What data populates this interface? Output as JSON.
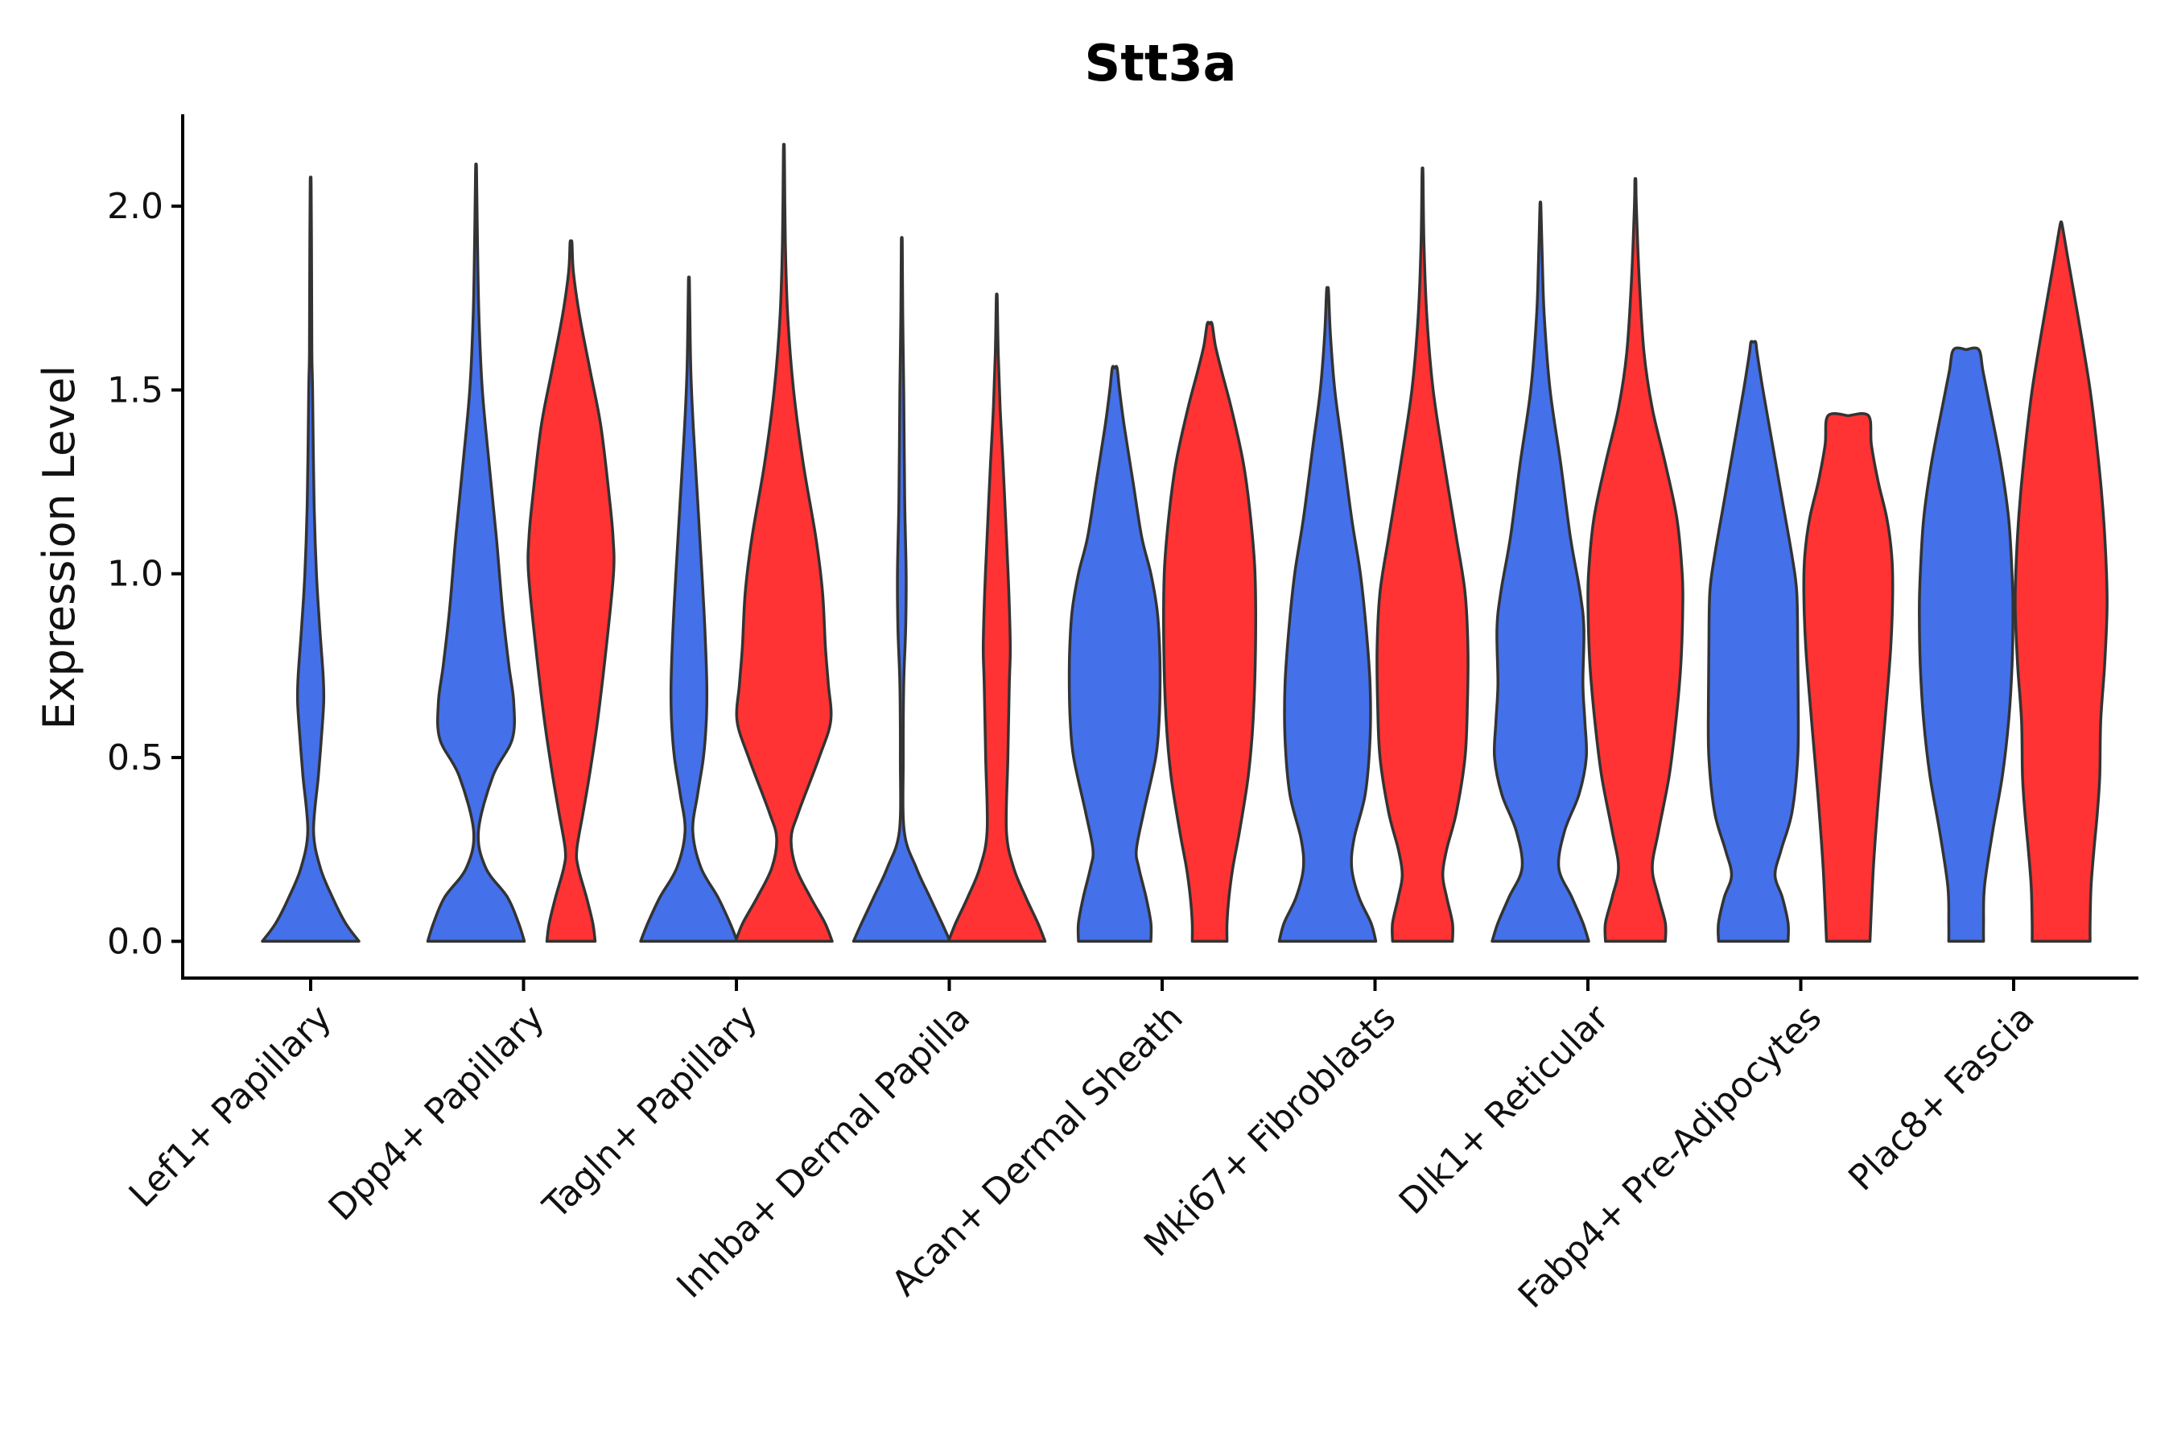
{
  "chart_data": {
    "type": "violin",
    "title": "Stt3a",
    "xlabel": "",
    "ylabel": "Expression Level",
    "ylim": [
      -0.1,
      2.25
    ],
    "yticks": [
      0.0,
      0.5,
      1.0,
      1.5,
      2.0
    ],
    "ytick_labels": [
      "0.0",
      "0.5",
      "1.0",
      "1.5",
      "2.0"
    ],
    "categories": [
      "Lef1+ Papillary",
      "Dpp4+ Papillary",
      "Tagln+ Papillary",
      "Inhba+ Dermal Papilla",
      "Acan+ Dermal Sheath",
      "Mki67+ Fibroblasts",
      "Dlk1+ Reticular",
      "Fabp4+ Pre-Adipocytes",
      "Plac8+ Fascia"
    ],
    "series": [
      {
        "name": "group1",
        "color": "#4470ea"
      },
      {
        "name": "group2",
        "color": "#ff3333"
      }
    ],
    "violins": [
      {
        "category": "Lef1+ Papillary",
        "series": "group1",
        "max": 2.06,
        "profile": [
          [
            0,
            1.0
          ],
          [
            0.05,
            0.72
          ],
          [
            0.12,
            0.45
          ],
          [
            0.2,
            0.2
          ],
          [
            0.3,
            0.06
          ],
          [
            0.45,
            0.16
          ],
          [
            0.55,
            0.22
          ],
          [
            0.65,
            0.27
          ],
          [
            0.72,
            0.26
          ],
          [
            0.85,
            0.19
          ],
          [
            1.0,
            0.12
          ],
          [
            1.2,
            0.07
          ],
          [
            1.5,
            0.04
          ],
          [
            1.6,
            0.025
          ],
          [
            1.8,
            0.02
          ],
          [
            2.06,
            0.01
          ]
        ]
      },
      {
        "category": "Dpp4+ Papillary",
        "series": "group1",
        "max": 2.1,
        "profile": [
          [
            0,
            1.0
          ],
          [
            0.05,
            0.88
          ],
          [
            0.12,
            0.65
          ],
          [
            0.2,
            0.2
          ],
          [
            0.3,
            0.05
          ],
          [
            0.45,
            0.35
          ],
          [
            0.55,
            0.75
          ],
          [
            0.65,
            0.78
          ],
          [
            0.75,
            0.68
          ],
          [
            0.9,
            0.55
          ],
          [
            1.1,
            0.42
          ],
          [
            1.3,
            0.27
          ],
          [
            1.5,
            0.13
          ],
          [
            1.7,
            0.06
          ],
          [
            1.9,
            0.03
          ],
          [
            2.1,
            0.01
          ]
        ]
      },
      {
        "category": "Dpp4+ Papillary",
        "series": "group2",
        "max": 1.9,
        "profile": [
          [
            0,
            0.5
          ],
          [
            0.05,
            0.45
          ],
          [
            0.12,
            0.32
          ],
          [
            0.2,
            0.15
          ],
          [
            0.25,
            0.12
          ],
          [
            0.35,
            0.25
          ],
          [
            0.45,
            0.38
          ],
          [
            0.6,
            0.55
          ],
          [
            0.8,
            0.73
          ],
          [
            1.0,
            0.88
          ],
          [
            1.1,
            0.87
          ],
          [
            1.2,
            0.8
          ],
          [
            1.4,
            0.62
          ],
          [
            1.55,
            0.4
          ],
          [
            1.7,
            0.18
          ],
          [
            1.82,
            0.05
          ],
          [
            1.9,
            0.02
          ]
        ]
      },
      {
        "category": "Tagln+ Papillary",
        "series": "group1",
        "max": 1.8,
        "profile": [
          [
            0,
            1.0
          ],
          [
            0.05,
            0.85
          ],
          [
            0.12,
            0.6
          ],
          [
            0.2,
            0.25
          ],
          [
            0.3,
            0.08
          ],
          [
            0.4,
            0.18
          ],
          [
            0.5,
            0.3
          ],
          [
            0.6,
            0.36
          ],
          [
            0.7,
            0.37
          ],
          [
            0.85,
            0.33
          ],
          [
            1.0,
            0.27
          ],
          [
            1.2,
            0.18
          ],
          [
            1.4,
            0.09
          ],
          [
            1.55,
            0.04
          ],
          [
            1.7,
            0.02
          ],
          [
            1.8,
            0.01
          ]
        ]
      },
      {
        "category": "Tagln+ Papillary",
        "series": "group2",
        "max": 2.15,
        "profile": [
          [
            0,
            1.0
          ],
          [
            0.05,
            0.85
          ],
          [
            0.12,
            0.55
          ],
          [
            0.2,
            0.25
          ],
          [
            0.28,
            0.15
          ],
          [
            0.35,
            0.3
          ],
          [
            0.5,
            0.73
          ],
          [
            0.6,
            0.97
          ],
          [
            0.7,
            0.92
          ],
          [
            0.8,
            0.86
          ],
          [
            0.95,
            0.8
          ],
          [
            1.1,
            0.66
          ],
          [
            1.3,
            0.4
          ],
          [
            1.5,
            0.2
          ],
          [
            1.7,
            0.08
          ],
          [
            1.9,
            0.03
          ],
          [
            2.15,
            0.01
          ]
        ]
      },
      {
        "category": "Inhba+ Dermal Papilla",
        "series": "group1",
        "max": 1.9,
        "profile": [
          [
            0,
            1.0
          ],
          [
            0.05,
            0.83
          ],
          [
            0.12,
            0.58
          ],
          [
            0.2,
            0.3
          ],
          [
            0.3,
            0.05
          ],
          [
            0.5,
            0.03
          ],
          [
            0.7,
            0.04
          ],
          [
            0.85,
            0.08
          ],
          [
            1.0,
            0.09
          ],
          [
            1.2,
            0.06
          ],
          [
            1.5,
            0.04
          ],
          [
            1.7,
            0.02
          ],
          [
            1.9,
            0.01
          ]
        ]
      },
      {
        "category": "Inhba+ Dermal Papilla",
        "series": "group2",
        "max": 1.75,
        "profile": [
          [
            0,
            1.0
          ],
          [
            0.05,
            0.85
          ],
          [
            0.12,
            0.6
          ],
          [
            0.2,
            0.35
          ],
          [
            0.3,
            0.2
          ],
          [
            0.5,
            0.23
          ],
          [
            0.7,
            0.26
          ],
          [
            0.8,
            0.28
          ],
          [
            0.95,
            0.25
          ],
          [
            1.1,
            0.2
          ],
          [
            1.3,
            0.13
          ],
          [
            1.45,
            0.07
          ],
          [
            1.6,
            0.03
          ],
          [
            1.75,
            0.01
          ]
        ]
      },
      {
        "category": "Acan+ Dermal Sheath",
        "series": "group1",
        "max": 1.56,
        "profile": [
          [
            0,
            0.75
          ],
          [
            0.05,
            0.75
          ],
          [
            0.12,
            0.65
          ],
          [
            0.2,
            0.5
          ],
          [
            0.25,
            0.45
          ],
          [
            0.35,
            0.6
          ],
          [
            0.5,
            0.85
          ],
          [
            0.6,
            0.92
          ],
          [
            0.7,
            0.94
          ],
          [
            0.8,
            0.93
          ],
          [
            0.9,
            0.88
          ],
          [
            1.0,
            0.75
          ],
          [
            1.1,
            0.56
          ],
          [
            1.25,
            0.38
          ],
          [
            1.4,
            0.2
          ],
          [
            1.5,
            0.1
          ],
          [
            1.56,
            0.05
          ]
        ]
      },
      {
        "category": "Acan+ Dermal Sheath",
        "series": "group2",
        "max": 1.68,
        "profile": [
          [
            0,
            0.36
          ],
          [
            0.05,
            0.36
          ],
          [
            0.12,
            0.4
          ],
          [
            0.2,
            0.48
          ],
          [
            0.3,
            0.62
          ],
          [
            0.45,
            0.8
          ],
          [
            0.6,
            0.9
          ],
          [
            0.8,
            0.95
          ],
          [
            1.0,
            0.94
          ],
          [
            1.15,
            0.85
          ],
          [
            1.3,
            0.7
          ],
          [
            1.45,
            0.45
          ],
          [
            1.55,
            0.25
          ],
          [
            1.62,
            0.12
          ],
          [
            1.68,
            0.05
          ]
        ]
      },
      {
        "category": "Mki67+ Fibroblasts",
        "series": "group1",
        "max": 1.77,
        "profile": [
          [
            0,
            1.0
          ],
          [
            0.05,
            0.9
          ],
          [
            0.12,
            0.65
          ],
          [
            0.2,
            0.5
          ],
          [
            0.28,
            0.55
          ],
          [
            0.4,
            0.78
          ],
          [
            0.55,
            0.88
          ],
          [
            0.7,
            0.88
          ],
          [
            0.85,
            0.8
          ],
          [
            1.0,
            0.68
          ],
          [
            1.15,
            0.5
          ],
          [
            1.35,
            0.3
          ],
          [
            1.5,
            0.15
          ],
          [
            1.65,
            0.06
          ],
          [
            1.77,
            0.02
          ]
        ]
      },
      {
        "category": "Mki67+ Fibroblasts",
        "series": "group2",
        "max": 2.09,
        "profile": [
          [
            0,
            0.62
          ],
          [
            0.05,
            0.62
          ],
          [
            0.12,
            0.5
          ],
          [
            0.18,
            0.42
          ],
          [
            0.25,
            0.5
          ],
          [
            0.35,
            0.7
          ],
          [
            0.5,
            0.88
          ],
          [
            0.65,
            0.93
          ],
          [
            0.8,
            0.94
          ],
          [
            0.95,
            0.88
          ],
          [
            1.1,
            0.7
          ],
          [
            1.3,
            0.45
          ],
          [
            1.5,
            0.22
          ],
          [
            1.7,
            0.09
          ],
          [
            1.9,
            0.03
          ],
          [
            2.09,
            0.01
          ]
        ]
      },
      {
        "category": "Dlk1+ Reticular",
        "series": "group1",
        "max": 2.0,
        "profile": [
          [
            0,
            1.0
          ],
          [
            0.05,
            0.88
          ],
          [
            0.12,
            0.65
          ],
          [
            0.2,
            0.38
          ],
          [
            0.3,
            0.5
          ],
          [
            0.4,
            0.8
          ],
          [
            0.5,
            0.95
          ],
          [
            0.6,
            0.92
          ],
          [
            0.7,
            0.88
          ],
          [
            0.85,
            0.9
          ],
          [
            0.95,
            0.82
          ],
          [
            1.1,
            0.62
          ],
          [
            1.3,
            0.42
          ],
          [
            1.5,
            0.2
          ],
          [
            1.7,
            0.08
          ],
          [
            1.85,
            0.04
          ],
          [
            2.0,
            0.01
          ]
        ]
      },
      {
        "category": "Dlk1+ Reticular",
        "series": "group2",
        "max": 2.07,
        "profile": [
          [
            0,
            0.62
          ],
          [
            0.05,
            0.62
          ],
          [
            0.12,
            0.48
          ],
          [
            0.2,
            0.35
          ],
          [
            0.3,
            0.48
          ],
          [
            0.45,
            0.7
          ],
          [
            0.6,
            0.84
          ],
          [
            0.75,
            0.94
          ],
          [
            0.9,
            0.98
          ],
          [
            1.0,
            0.97
          ],
          [
            1.15,
            0.86
          ],
          [
            1.3,
            0.62
          ],
          [
            1.45,
            0.35
          ],
          [
            1.6,
            0.18
          ],
          [
            1.8,
            0.08
          ],
          [
            2.0,
            0.02
          ],
          [
            2.07,
            0.01
          ]
        ]
      },
      {
        "category": "Fabp4+ Pre-Adipocytes",
        "series": "group1",
        "max": 1.63,
        "profile": [
          [
            0,
            0.72
          ],
          [
            0.05,
            0.72
          ],
          [
            0.12,
            0.6
          ],
          [
            0.18,
            0.45
          ],
          [
            0.25,
            0.58
          ],
          [
            0.35,
            0.8
          ],
          [
            0.5,
            0.92
          ],
          [
            0.65,
            0.93
          ],
          [
            0.8,
            0.92
          ],
          [
            0.95,
            0.9
          ],
          [
            1.05,
            0.8
          ],
          [
            1.2,
            0.6
          ],
          [
            1.35,
            0.4
          ],
          [
            1.5,
            0.2
          ],
          [
            1.6,
            0.08
          ],
          [
            1.63,
            0.05
          ]
        ]
      },
      {
        "category": "Fabp4+ Pre-Adipocytes",
        "series": "group2",
        "max": 1.43,
        "profile": [
          [
            0,
            0.45
          ],
          [
            0.2,
            0.52
          ],
          [
            0.4,
            0.63
          ],
          [
            0.6,
            0.76
          ],
          [
            0.8,
            0.88
          ],
          [
            0.95,
            0.92
          ],
          [
            1.05,
            0.9
          ],
          [
            1.15,
            0.8
          ],
          [
            1.25,
            0.62
          ],
          [
            1.35,
            0.48
          ],
          [
            1.43,
            0.42
          ]
        ]
      },
      {
        "category": "Plac8+ Fascia",
        "series": "group1",
        "max": 1.61,
        "profile": [
          [
            0,
            0.36
          ],
          [
            0.05,
            0.36
          ],
          [
            0.15,
            0.38
          ],
          [
            0.3,
            0.55
          ],
          [
            0.45,
            0.75
          ],
          [
            0.6,
            0.88
          ],
          [
            0.75,
            0.95
          ],
          [
            0.9,
            0.97
          ],
          [
            1.0,
            0.95
          ],
          [
            1.15,
            0.88
          ],
          [
            1.3,
            0.72
          ],
          [
            1.45,
            0.5
          ],
          [
            1.55,
            0.35
          ],
          [
            1.61,
            0.26
          ]
        ]
      },
      {
        "category": "Plac8+ Fascia",
        "series": "group2",
        "max": 1.95,
        "profile": [
          [
            0,
            0.6
          ],
          [
            0.05,
            0.6
          ],
          [
            0.15,
            0.62
          ],
          [
            0.25,
            0.68
          ],
          [
            0.35,
            0.75
          ],
          [
            0.45,
            0.8
          ],
          [
            0.6,
            0.82
          ],
          [
            0.75,
            0.9
          ],
          [
            0.9,
            0.95
          ],
          [
            1.0,
            0.94
          ],
          [
            1.15,
            0.88
          ],
          [
            1.3,
            0.78
          ],
          [
            1.5,
            0.6
          ],
          [
            1.7,
            0.35
          ],
          [
            1.85,
            0.15
          ],
          [
            1.95,
            0.02
          ]
        ]
      }
    ]
  }
}
